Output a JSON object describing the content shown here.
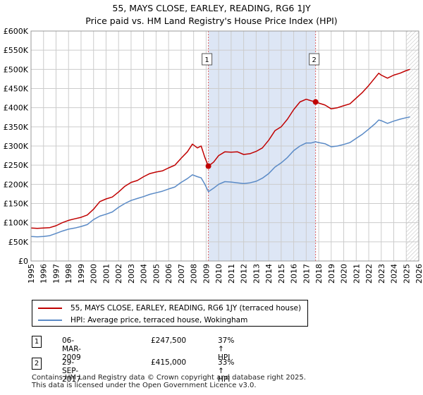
{
  "title": "55, MAYS CLOSE, EARLEY, READING, RG6 1JY",
  "subtitle": "Price paid vs. HM Land Registry's House Price Index (HPI)",
  "colors": {
    "property": "#c00000",
    "hpi": "#5a8ac6",
    "shade": "#dde6f5",
    "grid": "#cccccc",
    "marker_line": "#e06060"
  },
  "chart_data": {
    "type": "line",
    "title": "55, MAYS CLOSE, EARLEY, READING, RG6 1JY — Price paid vs. HM Land Registry's House Price Index (HPI)",
    "xlim": [
      1995,
      2026
    ],
    "ylim": [
      0,
      600000
    ],
    "x_ticks": [
      "1995",
      "1996",
      "1997",
      "1998",
      "1999",
      "2000",
      "2001",
      "2002",
      "2003",
      "2004",
      "2005",
      "2006",
      "2007",
      "2008",
      "2009",
      "2010",
      "2011",
      "2012",
      "2013",
      "2014",
      "2015",
      "2016",
      "2017",
      "2018",
      "2019",
      "2020",
      "2021",
      "2022",
      "2023",
      "2024",
      "2025",
      "2026"
    ],
    "y_ticks": [
      {
        "value": 0,
        "label": "£0"
      },
      {
        "value": 50000,
        "label": "£50K"
      },
      {
        "value": 100000,
        "label": "£100K"
      },
      {
        "value": 150000,
        "label": "£150K"
      },
      {
        "value": 200000,
        "label": "£200K"
      },
      {
        "value": 250000,
        "label": "£250K"
      },
      {
        "value": 300000,
        "label": "£300K"
      },
      {
        "value": 350000,
        "label": "£350K"
      },
      {
        "value": 400000,
        "label": "£400K"
      },
      {
        "value": 450000,
        "label": "£450K"
      },
      {
        "value": 500000,
        "label": "£500K"
      },
      {
        "value": 550000,
        "label": "£550K"
      },
      {
        "value": 600000,
        "label": "£600K"
      }
    ],
    "shaded_range": [
      2009.18,
      2017.75
    ],
    "future_hatch_start": 2025.0,
    "series": [
      {
        "name": "55, MAYS CLOSE, EARLEY, READING, RG6 1JY (terraced house)",
        "color": "#c00000",
        "points": [
          [
            1995,
            86000
          ],
          [
            1995.5,
            85000
          ],
          [
            1996,
            86000
          ],
          [
            1996.5,
            87000
          ],
          [
            1997,
            92000
          ],
          [
            1997.5,
            100000
          ],
          [
            1998,
            106000
          ],
          [
            1998.5,
            110000
          ],
          [
            1999,
            114000
          ],
          [
            1999.5,
            120000
          ],
          [
            2000,
            135000
          ],
          [
            2000.5,
            155000
          ],
          [
            2001,
            162000
          ],
          [
            2001.5,
            167000
          ],
          [
            2002,
            180000
          ],
          [
            2002.5,
            195000
          ],
          [
            2003,
            205000
          ],
          [
            2003.5,
            210000
          ],
          [
            2004,
            220000
          ],
          [
            2004.5,
            228000
          ],
          [
            2005,
            232000
          ],
          [
            2005.5,
            235000
          ],
          [
            2006,
            243000
          ],
          [
            2006.5,
            250000
          ],
          [
            2007,
            268000
          ],
          [
            2007.5,
            285000
          ],
          [
            2007.9,
            305000
          ],
          [
            2008.3,
            295000
          ],
          [
            2008.6,
            300000
          ],
          [
            2008.9,
            270000
          ],
          [
            2009.18,
            247500
          ],
          [
            2009.6,
            258000
          ],
          [
            2010,
            275000
          ],
          [
            2010.5,
            285000
          ],
          [
            2011,
            284000
          ],
          [
            2011.5,
            285000
          ],
          [
            2012,
            278000
          ],
          [
            2012.5,
            280000
          ],
          [
            2013,
            286000
          ],
          [
            2013.5,
            295000
          ],
          [
            2014,
            315000
          ],
          [
            2014.5,
            340000
          ],
          [
            2015,
            350000
          ],
          [
            2015.5,
            370000
          ],
          [
            2016,
            395000
          ],
          [
            2016.5,
            415000
          ],
          [
            2017,
            422000
          ],
          [
            2017.4,
            418000
          ],
          [
            2017.75,
            415000
          ],
          [
            2018,
            412000
          ],
          [
            2018.5,
            407000
          ],
          [
            2019,
            397000
          ],
          [
            2019.5,
            400000
          ],
          [
            2020,
            405000
          ],
          [
            2020.5,
            410000
          ],
          [
            2021,
            425000
          ],
          [
            2021.5,
            440000
          ],
          [
            2022,
            458000
          ],
          [
            2022.5,
            478000
          ],
          [
            2022.8,
            490000
          ],
          [
            2023,
            485000
          ],
          [
            2023.5,
            477000
          ],
          [
            2024,
            485000
          ],
          [
            2024.5,
            490000
          ],
          [
            2025,
            497000
          ],
          [
            2025.3,
            500000
          ]
        ]
      },
      {
        "name": "HPI: Average price, terraced house, Wokingham",
        "color": "#5a8ac6",
        "points": [
          [
            1995,
            64000
          ],
          [
            1995.5,
            63000
          ],
          [
            1996,
            64000
          ],
          [
            1996.5,
            66000
          ],
          [
            1997,
            72000
          ],
          [
            1997.5,
            78000
          ],
          [
            1998,
            83000
          ],
          [
            1998.5,
            86000
          ],
          [
            1999,
            90000
          ],
          [
            1999.5,
            95000
          ],
          [
            2000,
            108000
          ],
          [
            2000.5,
            117000
          ],
          [
            2001,
            122000
          ],
          [
            2001.5,
            128000
          ],
          [
            2002,
            140000
          ],
          [
            2002.5,
            150000
          ],
          [
            2003,
            158000
          ],
          [
            2003.5,
            163000
          ],
          [
            2004,
            168000
          ],
          [
            2004.5,
            174000
          ],
          [
            2005,
            178000
          ],
          [
            2005.5,
            182000
          ],
          [
            2006,
            188000
          ],
          [
            2006.5,
            193000
          ],
          [
            2007,
            205000
          ],
          [
            2007.5,
            215000
          ],
          [
            2007.9,
            225000
          ],
          [
            2008.3,
            220000
          ],
          [
            2008.6,
            217000
          ],
          [
            2008.9,
            200000
          ],
          [
            2009.18,
            181000
          ],
          [
            2009.6,
            190000
          ],
          [
            2010,
            200000
          ],
          [
            2010.5,
            207000
          ],
          [
            2011,
            206000
          ],
          [
            2011.5,
            204000
          ],
          [
            2012,
            202000
          ],
          [
            2012.5,
            204000
          ],
          [
            2013,
            208000
          ],
          [
            2013.5,
            216000
          ],
          [
            2014,
            228000
          ],
          [
            2014.5,
            245000
          ],
          [
            2015,
            256000
          ],
          [
            2015.5,
            270000
          ],
          [
            2016,
            288000
          ],
          [
            2016.5,
            300000
          ],
          [
            2017,
            308000
          ],
          [
            2017.4,
            308000
          ],
          [
            2017.75,
            311000
          ],
          [
            2018,
            309000
          ],
          [
            2018.5,
            306000
          ],
          [
            2019,
            298000
          ],
          [
            2019.5,
            300000
          ],
          [
            2020,
            304000
          ],
          [
            2020.5,
            309000
          ],
          [
            2021,
            320000
          ],
          [
            2021.5,
            331000
          ],
          [
            2022,
            344000
          ],
          [
            2022.5,
            358000
          ],
          [
            2022.8,
            368000
          ],
          [
            2023,
            366000
          ],
          [
            2023.5,
            359000
          ],
          [
            2024,
            365000
          ],
          [
            2024.5,
            370000
          ],
          [
            2025,
            374000
          ],
          [
            2025.3,
            376000
          ]
        ]
      }
    ],
    "sales": [
      {
        "id": "1",
        "x": 2009.18,
        "y": 247500
      },
      {
        "id": "2",
        "x": 2017.75,
        "y": 415000
      }
    ]
  },
  "legend": {
    "property_label": "55, MAYS CLOSE, EARLEY, READING, RG6 1JY (terraced house)",
    "hpi_label": "HPI: Average price, terraced house, Wokingham"
  },
  "sales_table": [
    {
      "id": "1",
      "date": "06-MAR-2009",
      "price": "£247,500",
      "hpi_change": "37% ↑ HPI"
    },
    {
      "id": "2",
      "date": "29-SEP-2017",
      "price": "£415,000",
      "hpi_change": "33% ↑ HPI"
    }
  ],
  "footer": {
    "line1": "Contains HM Land Registry data © Crown copyright and database right 2025.",
    "line2": "This data is licensed under the Open Government Licence v3.0."
  }
}
